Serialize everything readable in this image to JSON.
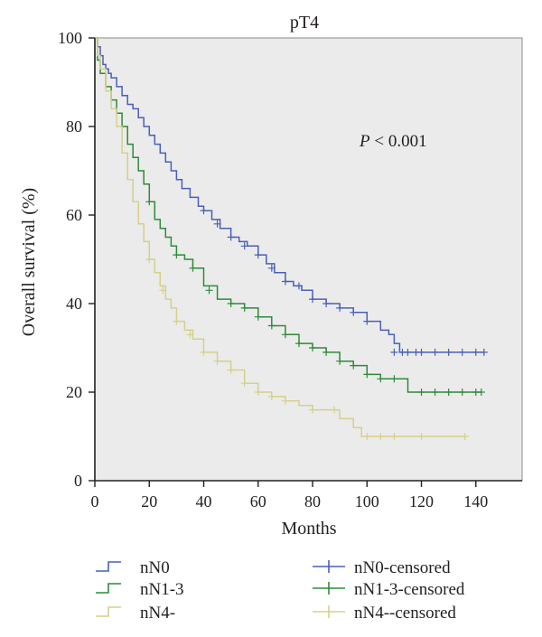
{
  "chart_data": {
    "type": "line",
    "title": "pT4",
    "xlabel": "Months",
    "ylabel": "Overall survival (%)",
    "xlim": [
      0,
      157
    ],
    "ylim": [
      0,
      100
    ],
    "xticks": [
      0,
      20,
      40,
      60,
      80,
      100,
      120,
      140
    ],
    "yticks": [
      0,
      20,
      40,
      60,
      80,
      100
    ],
    "grid": false,
    "background_color": "#ebebeb",
    "annotation": "P < 0.001",
    "legend_position": "bottom",
    "series": [
      {
        "name": "nN0",
        "censored_name": "nN0-censored",
        "color": "#4a5fb8",
        "x": [
          0,
          1,
          2,
          3,
          4,
          5,
          6,
          8,
          10,
          12,
          14,
          16,
          18,
          20,
          22,
          24,
          26,
          28,
          30,
          32,
          35,
          38,
          40,
          43,
          46,
          50,
          53,
          56,
          60,
          63,
          66,
          70,
          73,
          76,
          80,
          85,
          90,
          95,
          100,
          105,
          108,
          110,
          112,
          115,
          120,
          125,
          130,
          135,
          140,
          143
        ],
        "y": [
          100,
          98,
          96,
          94,
          93,
          92,
          91,
          89,
          87,
          85,
          84,
          82,
          80,
          78,
          76,
          74,
          72,
          70,
          68,
          66,
          64,
          62,
          61,
          59,
          57,
          55,
          54,
          53,
          51,
          49,
          47,
          45,
          44,
          43,
          41,
          40,
          39,
          38,
          36,
          34,
          33,
          31,
          29,
          29,
          29,
          29,
          29,
          29,
          29,
          29
        ],
        "censored_x": [
          40,
          45,
          50,
          55,
          60,
          65,
          70,
          75,
          80,
          85,
          90,
          95,
          100,
          110,
          113,
          115,
          118,
          120,
          125,
          130,
          135,
          140,
          143
        ],
        "censored_y": [
          61,
          58,
          55,
          53,
          51,
          48,
          45,
          44,
          41,
          40,
          39,
          38,
          36,
          29,
          29,
          29,
          29,
          29,
          29,
          29,
          29,
          29,
          29
        ]
      },
      {
        "name": "nN1-3",
        "censored_name": "nN1-3-censored",
        "color": "#2e8b3a",
        "x": [
          0,
          1,
          2,
          4,
          6,
          8,
          10,
          12,
          14,
          16,
          18,
          20,
          22,
          24,
          26,
          28,
          30,
          33,
          36,
          40,
          45,
          50,
          55,
          60,
          65,
          70,
          75,
          80,
          85,
          90,
          95,
          100,
          105,
          110,
          115,
          120,
          130,
          140,
          142
        ],
        "y": [
          100,
          95,
          92,
          89,
          86,
          83,
          80,
          76,
          73,
          70,
          67,
          63,
          59,
          57,
          55,
          53,
          51,
          50,
          48,
          44,
          41,
          40,
          39,
          37,
          35,
          33,
          31,
          30,
          29,
          27,
          26,
          24,
          23,
          23,
          20,
          20,
          20,
          20,
          20
        ],
        "censored_x": [
          20,
          30,
          36,
          42,
          50,
          55,
          60,
          65,
          70,
          75,
          80,
          85,
          90,
          95,
          100,
          105,
          110,
          120,
          125,
          130,
          135,
          140,
          142
        ],
        "censored_y": [
          63,
          51,
          48,
          43,
          40,
          39,
          37,
          35,
          33,
          31,
          30,
          29,
          27,
          26,
          24,
          23,
          23,
          20,
          20,
          20,
          20,
          20,
          20
        ]
      },
      {
        "name": "nN4-",
        "censored_name": "nN4--censored",
        "color": "#d6d08a",
        "x": [
          0,
          1,
          2,
          4,
          6,
          8,
          10,
          12,
          14,
          16,
          18,
          20,
          22,
          24,
          26,
          28,
          30,
          33,
          36,
          40,
          45,
          50,
          55,
          60,
          65,
          70,
          75,
          80,
          85,
          88,
          90,
          95,
          98,
          100,
          110,
          120,
          130,
          136
        ],
        "y": [
          100,
          96,
          93,
          88,
          84,
          80,
          74,
          68,
          63,
          58,
          54,
          50,
          47,
          44,
          41,
          39,
          36,
          34,
          32,
          29,
          27,
          25,
          22,
          20,
          19,
          18,
          17,
          16,
          16,
          16,
          14,
          12,
          10,
          10,
          10,
          10,
          10,
          10
        ],
        "censored_x": [
          20,
          25,
          30,
          35,
          40,
          45,
          50,
          55,
          60,
          65,
          70,
          80,
          88,
          100,
          105,
          110,
          120,
          136
        ],
        "censored_y": [
          50,
          43,
          36,
          33,
          29,
          27,
          25,
          22,
          20,
          19,
          18,
          16,
          16,
          10,
          10,
          10,
          10,
          10
        ]
      }
    ]
  }
}
